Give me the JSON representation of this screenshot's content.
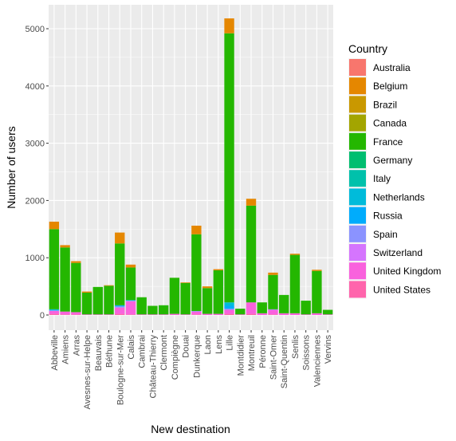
{
  "chart_data": {
    "type": "bar",
    "stacked": true,
    "xlabel": "New destination",
    "ylabel": "Number of users",
    "ylim": [
      -200,
      5400
    ],
    "yticks": [
      0,
      1000,
      2000,
      3000,
      4000,
      5000
    ],
    "grid": true,
    "legend_position": "right",
    "legend_title": "Country",
    "categories": [
      "Abbeville",
      "Amiens",
      "Arras",
      "Avesnes-sur-Helpe",
      "Beauvais",
      "Béthune",
      "Boulogne-sur-Mer",
      "Calais",
      "Cambrai",
      "Château-Thierry",
      "Clermont",
      "Compiègne",
      "Douai",
      "Dunkerque",
      "Laon",
      "Lens",
      "Lille",
      "Montdidier",
      "Montreuil",
      "Péronne",
      "Saint-Omer",
      "Saint-Quentin",
      "Senlis",
      "Soissons",
      "Valenciennes",
      "Vervins"
    ],
    "series": [
      {
        "name": "Australia",
        "color": "#F8766D",
        "values": [
          0,
          0,
          0,
          0,
          0,
          0,
          0,
          0,
          0,
          0,
          0,
          0,
          0,
          0,
          0,
          0,
          0,
          0,
          0,
          0,
          0,
          0,
          0,
          0,
          0,
          0
        ]
      },
      {
        "name": "Belgium",
        "color": "#E58700",
        "values": [
          130,
          40,
          30,
          20,
          0,
          10,
          190,
          50,
          0,
          0,
          0,
          0,
          10,
          150,
          30,
          20,
          260,
          0,
          120,
          0,
          40,
          0,
          20,
          0,
          20,
          0
        ]
      },
      {
        "name": "Brazil",
        "color": "#C99800",
        "values": [
          0,
          0,
          0,
          0,
          0,
          0,
          0,
          0,
          0,
          0,
          0,
          0,
          0,
          0,
          0,
          0,
          0,
          0,
          0,
          0,
          0,
          0,
          0,
          0,
          0,
          0
        ]
      },
      {
        "name": "Canada",
        "color": "#A3A500",
        "values": [
          0,
          0,
          0,
          0,
          0,
          0,
          0,
          0,
          0,
          0,
          0,
          0,
          0,
          0,
          0,
          0,
          0,
          0,
          0,
          0,
          0,
          0,
          0,
          0,
          0,
          0
        ]
      },
      {
        "name": "France",
        "color": "#24B700",
        "values": [
          1400,
          1120,
          860,
          380,
          480,
          500,
          1080,
          570,
          300,
          150,
          160,
          630,
          550,
          1340,
          450,
          760,
          4700,
          100,
          1690,
          190,
          600,
          320,
          1020,
          240,
          740,
          80
        ]
      },
      {
        "name": "Germany",
        "color": "#00BE70",
        "values": [
          0,
          0,
          0,
          0,
          0,
          0,
          0,
          0,
          0,
          0,
          0,
          0,
          0,
          0,
          0,
          0,
          0,
          0,
          0,
          0,
          0,
          0,
          0,
          0,
          0,
          0
        ]
      },
      {
        "name": "Italy",
        "color": "#00C1AB",
        "values": [
          0,
          0,
          0,
          0,
          0,
          0,
          0,
          0,
          0,
          0,
          0,
          0,
          0,
          0,
          0,
          0,
          0,
          0,
          0,
          0,
          0,
          0,
          0,
          0,
          0,
          0
        ]
      },
      {
        "name": "Netherlands",
        "color": "#00BBDA",
        "values": [
          10,
          0,
          0,
          0,
          0,
          0,
          0,
          0,
          0,
          0,
          0,
          0,
          0,
          0,
          0,
          0,
          60,
          0,
          0,
          0,
          0,
          0,
          0,
          0,
          0,
          0
        ]
      },
      {
        "name": "Russia",
        "color": "#00ACFC",
        "values": [
          10,
          0,
          0,
          0,
          0,
          0,
          20,
          10,
          0,
          0,
          0,
          0,
          0,
          0,
          0,
          0,
          50,
          0,
          0,
          0,
          0,
          0,
          0,
          0,
          0,
          0
        ]
      },
      {
        "name": "Spain",
        "color": "#8B93FF",
        "values": [
          10,
          0,
          0,
          0,
          0,
          0,
          20,
          10,
          0,
          0,
          0,
          0,
          0,
          10,
          0,
          0,
          20,
          0,
          0,
          0,
          10,
          0,
          0,
          0,
          0,
          0
        ]
      },
      {
        "name": "Switzerland",
        "color": "#D575FE",
        "values": [
          0,
          0,
          0,
          0,
          0,
          0,
          0,
          0,
          0,
          0,
          0,
          0,
          0,
          0,
          0,
          0,
          0,
          0,
          0,
          0,
          0,
          0,
          0,
          0,
          0,
          0
        ]
      },
      {
        "name": "United Kingdom",
        "color": "#F962DD",
        "values": [
          50,
          50,
          40,
          10,
          10,
          10,
          110,
          230,
          10,
          10,
          10,
          20,
          10,
          50,
          20,
          20,
          70,
          10,
          200,
          30,
          80,
          30,
          30,
          10,
          30,
          10
        ]
      },
      {
        "name": "United States",
        "color": "#FF65AC",
        "values": [
          20,
          10,
          10,
          0,
          0,
          0,
          20,
          10,
          0,
          0,
          0,
          0,
          0,
          10,
          0,
          0,
          20,
          0,
          20,
          0,
          10,
          0,
          0,
          0,
          0,
          0
        ]
      }
    ]
  }
}
